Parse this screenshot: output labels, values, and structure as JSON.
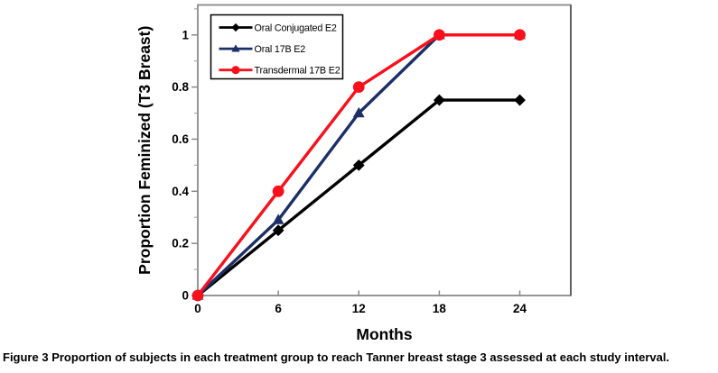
{
  "caption": {
    "label": "Figure 3",
    "text": "Proportion of subjects in each treatment group to reach Tanner breast stage 3 assessed at each study interval."
  },
  "chart_data": {
    "type": "line",
    "title": "",
    "xlabel": "Months",
    "ylabel": "Proportion Feminized (T3 Breast)",
    "x": [
      0,
      6,
      12,
      18,
      24
    ],
    "series": [
      {
        "name": "Oral Conjugated E2",
        "color": "#000000",
        "marker": "diamond",
        "values": [
          0,
          0.25,
          0.5,
          0.75,
          0.75
        ]
      },
      {
        "name": "Oral 17B E2",
        "color": "#1B2F66",
        "marker": "triangle",
        "values": [
          0,
          0.29,
          0.7,
          1,
          1
        ]
      },
      {
        "name": "Transdermal 17B E2",
        "color": "#F8101C",
        "marker": "circle",
        "values": [
          0,
          0.4,
          0.8,
          1,
          1
        ]
      }
    ],
    "xticks": [
      0,
      6,
      12,
      18,
      24
    ],
    "xtick_labels": [
      "0",
      "6",
      "12",
      "18",
      "24"
    ],
    "yticks": [
      0,
      0.2,
      0.4,
      0.6,
      0.8,
      1
    ],
    "ytick_labels": [
      "0",
      "0.2",
      "0.4",
      "0.6",
      "0.8",
      "1"
    ],
    "minor_ytick_step": 0.1,
    "xlim": [
      0,
      27.8
    ],
    "ylim": [
      0,
      1.115
    ],
    "grid": false,
    "legend_position": "top-left-inside",
    "colors": {
      "axis_line": "#8A8A8A",
      "frame_right": "#595959",
      "minor_tick": "#A6A6A6",
      "text": "#000000",
      "legend_border": "#000000",
      "background": "#FFFFFF"
    }
  }
}
